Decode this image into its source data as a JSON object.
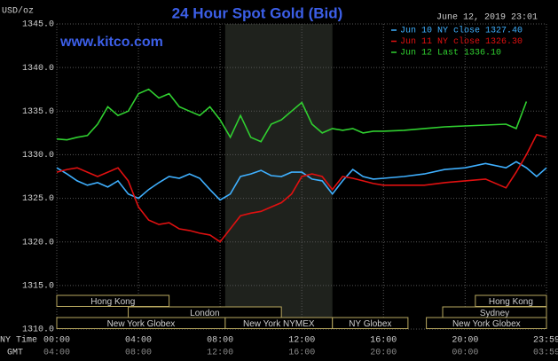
{
  "chart_data": {
    "type": "line",
    "title": "24 Hour Spot Gold (Bid)",
    "site": "www.kitco.com",
    "timestamp": "June 12, 2019 23:01",
    "y_label": "USD/oz",
    "x_label": "NY Time",
    "x2_label": "GMT",
    "ylim": [
      1310,
      1345
    ],
    "yticks": [
      {
        "value": 1345,
        "label": "1345.0"
      },
      {
        "value": 1340,
        "label": "1340.0"
      },
      {
        "value": 1335,
        "label": "1335.0"
      },
      {
        "value": 1330,
        "label": "1330.0"
      },
      {
        "value": 1325,
        "label": "1325.0"
      },
      {
        "value": 1320,
        "label": "1320.0"
      },
      {
        "value": 1315,
        "label": "1315.0"
      },
      {
        "value": 1310,
        "label": "1310.0"
      }
    ],
    "xlim": [
      0,
      23.983
    ],
    "xticks": [
      {
        "value": 0,
        "label": "00:00"
      },
      {
        "value": 4,
        "label": "04:00"
      },
      {
        "value": 8,
        "label": "08:00"
      },
      {
        "value": 12,
        "label": "12:00"
      },
      {
        "value": 16,
        "label": "16:00"
      },
      {
        "value": 20,
        "label": "20:00"
      },
      {
        "value": 23.983,
        "label": "23:59"
      }
    ],
    "x2tick_labels": [
      "04:00",
      "08:00",
      "12:00",
      "16:00",
      "20:00",
      "00:00",
      "03:59"
    ],
    "grid": true,
    "sessions": [
      [
        {
          "name": "Hong Kong",
          "start": 0,
          "end": 5.5
        },
        {
          "name": "Hong Kong",
          "start": 20.5,
          "end": 23.983
        }
      ],
      [
        {
          "name": "London",
          "start": 3.5,
          "end": 11
        },
        {
          "name": "Sydney",
          "start": 18.9,
          "end": 23.983
        }
      ],
      [
        {
          "name": "New York Globex",
          "start": 0,
          "end": 8.25
        },
        {
          "name": "New York NYMEX",
          "start": 8.25,
          "end": 13.5
        },
        {
          "name": "NY Globex",
          "start": 13.5,
          "end": 17.2
        },
        {
          "name": "New York Globex",
          "start": 18.1,
          "end": 23.983
        }
      ]
    ],
    "series": [
      {
        "name": "Jun 10 NY close 1327.40",
        "color": "#3fb0ff",
        "x": [
          0,
          0.5,
          1,
          1.5,
          2,
          2.5,
          3,
          3.5,
          4,
          4.5,
          5,
          5.5,
          6,
          6.5,
          7,
          7.5,
          8,
          8.5,
          9,
          9.5,
          10,
          10.5,
          11,
          11.5,
          12,
          12.5,
          13,
          13.5,
          14,
          14.5,
          15,
          15.5,
          16,
          17,
          18,
          19,
          20,
          21,
          22,
          22.5,
          23,
          23.5,
          23.983
        ],
        "values": [
          1328.5,
          1327.8,
          1327,
          1326.5,
          1326.8,
          1326.3,
          1327,
          1325.5,
          1325,
          1326,
          1326.8,
          1327.5,
          1327.3,
          1327.8,
          1327.3,
          1326,
          1324.8,
          1325.5,
          1327.5,
          1327.8,
          1328.2,
          1327.6,
          1327.5,
          1328,
          1328,
          1327.2,
          1327,
          1325.5,
          1327,
          1328.3,
          1327.5,
          1327.2,
          1327.3,
          1327.5,
          1327.8,
          1328.3,
          1328.5,
          1329,
          1328.5,
          1329.2,
          1328.5,
          1327.5,
          1328.5
        ]
      },
      {
        "name": "Jun 11 NY close 1326.30",
        "color": "#e01010",
        "x": [
          0,
          0.5,
          1,
          1.5,
          2,
          2.5,
          3,
          3.5,
          4,
          4.5,
          5,
          5.5,
          6,
          6.5,
          7,
          7.5,
          8,
          8.5,
          9,
          9.5,
          10,
          10.5,
          11,
          11.5,
          12,
          12.5,
          13,
          13.5,
          14,
          14.5,
          15,
          15.5,
          16,
          17,
          18,
          19,
          20,
          21,
          22,
          22.5,
          23,
          23.5,
          23.983
        ],
        "values": [
          1328,
          1328.3,
          1328.5,
          1328,
          1327.5,
          1328,
          1328.5,
          1327,
          1324,
          1322.5,
          1322,
          1322.2,
          1321.5,
          1321.3,
          1321,
          1320.8,
          1320,
          1321.5,
          1323,
          1323.3,
          1323.5,
          1324,
          1324.5,
          1325.5,
          1327.5,
          1327.8,
          1327.5,
          1326,
          1327.5,
          1327.3,
          1327,
          1326.7,
          1326.5,
          1326.5,
          1326.5,
          1326.8,
          1327,
          1327.2,
          1326.2,
          1328,
          1330,
          1332.3,
          1332
        ]
      },
      {
        "name": "Jun 12 Last 1336.10",
        "color": "#30d030",
        "x": [
          0,
          0.5,
          1,
          1.5,
          2,
          2.5,
          3,
          3.5,
          4,
          4.5,
          5,
          5.5,
          6,
          6.5,
          7,
          7.5,
          8,
          8.5,
          9,
          9.5,
          10,
          10.5,
          11,
          11.5,
          12,
          12.5,
          13,
          13.5,
          14,
          14.5,
          15,
          15.5,
          16,
          17,
          18,
          19,
          20,
          21,
          22,
          22.5,
          23
        ],
        "values": [
          1331.8,
          1331.7,
          1332,
          1332.2,
          1333.5,
          1335.5,
          1334.5,
          1335,
          1337,
          1337.5,
          1336.5,
          1337,
          1335.5,
          1335,
          1334.5,
          1335.5,
          1334,
          1332,
          1334.5,
          1332,
          1331.5,
          1333.5,
          1334,
          1335,
          1336,
          1333.5,
          1332.5,
          1333,
          1332.8,
          1333,
          1332.5,
          1332.7,
          1332.7,
          1332.8,
          1333,
          1333.2,
          1333.3,
          1333.4,
          1333.5,
          1333,
          1336.1
        ]
      }
    ]
  }
}
